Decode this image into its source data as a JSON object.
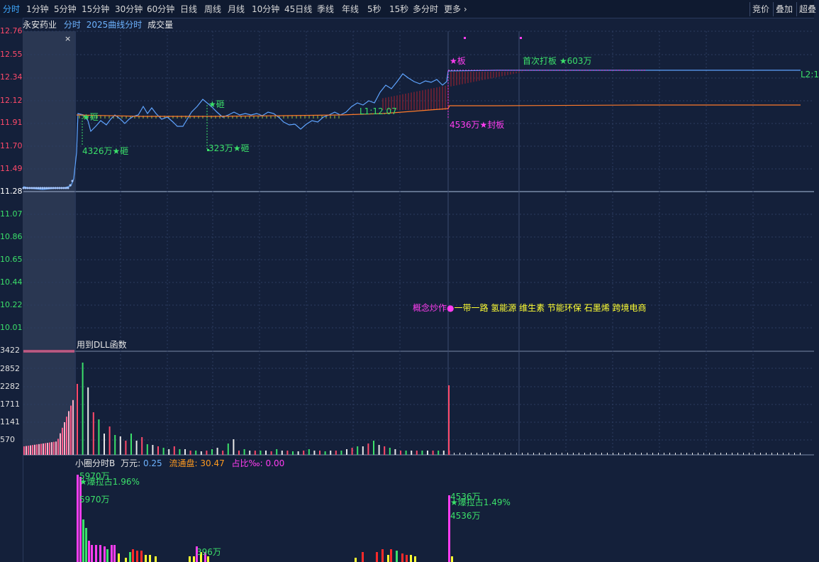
{
  "toolbar": {
    "items": [
      {
        "label": "分时",
        "active": true
      },
      {
        "label": "1分钟"
      },
      {
        "label": "5分钟"
      },
      {
        "label": "15分钟"
      },
      {
        "label": "30分钟"
      },
      {
        "label": "60分钟"
      },
      {
        "label": "日线"
      },
      {
        "label": "周线"
      },
      {
        "label": "月线"
      },
      {
        "label": "10分钟"
      },
      {
        "label": "45日线"
      },
      {
        "label": "季线"
      },
      {
        "label": "年线"
      },
      {
        "label": "5秒"
      },
      {
        "label": "15秒"
      },
      {
        "label": "多分时"
      },
      {
        "label": "更多"
      }
    ],
    "right_items": [
      {
        "label": "竞价"
      },
      {
        "label": "叠加"
      },
      {
        "label": "超叠"
      }
    ],
    "more_icon": "chevron-right-icon"
  },
  "header": {
    "stock": "永安药业",
    "mode": "分时",
    "indicator": "2025曲线分时",
    "volume_label": "成交量"
  },
  "close_glyph": "×",
  "price_axis": [
    {
      "v": "12.76",
      "cls": "up"
    },
    {
      "v": "12.55",
      "cls": "up"
    },
    {
      "v": "12.34",
      "cls": "up"
    },
    {
      "v": "12.12",
      "cls": "up"
    },
    {
      "v": "11.91",
      "cls": "up"
    },
    {
      "v": "11.70",
      "cls": "up"
    },
    {
      "v": "11.49",
      "cls": "up"
    },
    {
      "v": "11.28",
      "cls": "flat"
    },
    {
      "v": "11.07",
      "cls": "down"
    },
    {
      "v": "10.86",
      "cls": "down"
    },
    {
      "v": "10.65",
      "cls": "down"
    },
    {
      "v": "10.44",
      "cls": "down"
    },
    {
      "v": "10.22",
      "cls": "down"
    },
    {
      "v": "10.01",
      "cls": "down"
    }
  ],
  "volume_axis": [
    "3422",
    "2852",
    "2282",
    "1711",
    "1141",
    "570"
  ],
  "annotations": {
    "smash1": "★砸",
    "smash1_amt": "4326万★砸",
    "smash2": "★砸",
    "smash2_amt": "323万★砸",
    "board": "★板",
    "first_board": "首次打板 ★603万",
    "seal": "4536万★封板",
    "l1": "L1:12.07",
    "l2": "L2:1",
    "concept_prefix": "概念炒作●",
    "concepts": "一带一路 氢能源 维生素 节能环保 石墨烯 跨境电商",
    "dll": "用到DLL函数"
  },
  "bottom_header": {
    "name": "小圈分时B",
    "wan_label": "万元:",
    "wan_value": "0.25",
    "float_label": "流通盘:",
    "float_value": "30.47",
    "ratio_label": "占比‰:",
    "ratio_value": "0.00"
  },
  "bottom_notes": {
    "a1": "5970万",
    "a2": "★爆拉占1.96%",
    "a3": "5970万",
    "b1": "4536万",
    "b2": "★爆拉占1.49%",
    "b3": "4536万",
    "c1": "396万"
  },
  "colors": {
    "up": "#ff4a6a",
    "down": "#3be06a",
    "line": "#5fa4ff",
    "avg": "#ff7a2a",
    "magenta": "#ff3df0",
    "yellow": "#ffff33",
    "grid": "#2c3c60"
  }
}
